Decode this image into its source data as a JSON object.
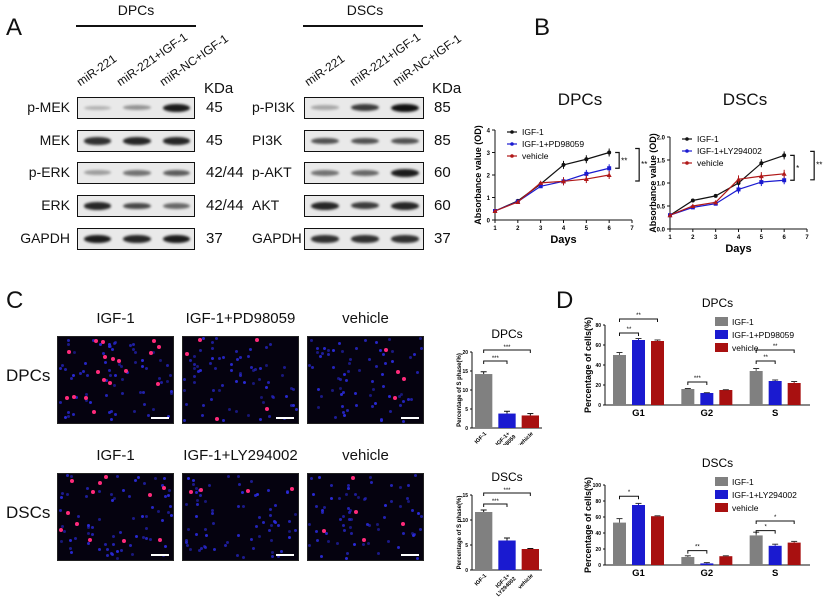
{
  "panels": {
    "A": {
      "letter": "A",
      "groups": [
        {
          "title": "DPCs",
          "lanes": [
            "miR-221",
            "miR-221+IGF-1",
            "miR-NC+IGF-1"
          ],
          "rows": [
            {
              "label": "p-MEK",
              "mw": "45",
              "intensity": [
                0.25,
                0.4,
                0.95
              ]
            },
            {
              "label": "MEK",
              "mw": "45",
              "intensity": [
                0.85,
                0.9,
                0.9
              ]
            },
            {
              "label": "p-ERK",
              "mw": "42/44",
              "intensity": [
                0.35,
                0.55,
                0.65
              ]
            },
            {
              "label": "ERK",
              "mw": "42/44",
              "intensity": [
                0.9,
                0.75,
                0.6
              ]
            },
            {
              "label": "GAPDH",
              "mw": "37",
              "intensity": [
                0.95,
                0.9,
                0.95
              ]
            }
          ]
        },
        {
          "title": "DSCs",
          "lanes": [
            "miR-221",
            "miR-221+IGF-1",
            "miR-NC+IGF-1"
          ],
          "rows": [
            {
              "label": "p-PI3K",
              "mw": "85",
              "intensity": [
                0.3,
                0.8,
                1.0
              ]
            },
            {
              "label": "PI3K",
              "mw": "85",
              "intensity": [
                0.7,
                0.7,
                0.7
              ]
            },
            {
              "label": "p-AKT",
              "mw": "60",
              "intensity": [
                0.55,
                0.6,
                0.95
              ]
            },
            {
              "label": "AKT",
              "mw": "60",
              "intensity": [
                0.9,
                0.8,
                0.9
              ]
            },
            {
              "label": "GAPDH",
              "mw": "37",
              "intensity": [
                0.85,
                0.85,
                0.85
              ]
            }
          ]
        }
      ],
      "kda_label": "KDa"
    },
    "B": {
      "letter": "B"
    },
    "C": {
      "letter": "C",
      "rows": [
        {
          "cell": "DPCs",
          "conditions": [
            "IGF-1",
            "IGF-1+PD98059",
            "vehicle"
          ]
        },
        {
          "cell": "DSCs",
          "conditions": [
            "IGF-1",
            "IGF-1+LY294002",
            "vehicle"
          ]
        }
      ]
    },
    "D": {
      "letter": "D"
    }
  },
  "chart_data": [
    {
      "id": "B-DPCs",
      "type": "line",
      "title": "DPCs",
      "xlabel": "Days",
      "ylabel": "Absorbance value (OD)",
      "x": [
        1,
        2,
        3,
        4,
        5,
        6
      ],
      "xlim": [
        1,
        7
      ],
      "ylim": [
        0,
        4
      ],
      "yticks": [
        0,
        1,
        2,
        3,
        4
      ],
      "series": [
        {
          "name": "IGF-1",
          "color": "#111111",
          "marker": "circle",
          "values": [
            0.4,
            0.85,
            1.6,
            2.45,
            2.7,
            3.0
          ]
        },
        {
          "name": "IGF-1+PD98059",
          "color": "#1a1ad0",
          "marker": "square",
          "values": [
            0.4,
            0.82,
            1.5,
            1.72,
            2.05,
            2.3
          ]
        },
        {
          "name": "vehicle",
          "color": "#b01818",
          "marker": "triangle",
          "values": [
            0.4,
            0.8,
            1.65,
            1.72,
            1.82,
            2.0
          ]
        }
      ],
      "annotations": [
        "**",
        "**"
      ],
      "legend_position": "top-left"
    },
    {
      "id": "B-DSCs",
      "type": "line",
      "title": "DSCs",
      "xlabel": "Days",
      "ylabel": "Absorbance value (OD)",
      "x": [
        1,
        2,
        3,
        4,
        5,
        6
      ],
      "xlim": [
        1,
        7
      ],
      "ylim": [
        0,
        2.0
      ],
      "yticks": [
        0.0,
        0.5,
        1.0,
        1.5,
        2.0
      ],
      "series": [
        {
          "name": "IGF-1",
          "color": "#111111",
          "marker": "circle",
          "values": [
            0.3,
            0.62,
            0.72,
            1.0,
            1.43,
            1.6
          ]
        },
        {
          "name": "IGF-1+LY294002",
          "color": "#1a1ad0",
          "marker": "square",
          "values": [
            0.3,
            0.47,
            0.55,
            0.86,
            1.02,
            1.06
          ]
        },
        {
          "name": "vehicle",
          "color": "#b01818",
          "marker": "triangle",
          "values": [
            0.3,
            0.5,
            0.58,
            1.08,
            1.15,
            1.2
          ]
        }
      ],
      "annotations": [
        "*",
        "**"
      ],
      "legend_position": "top-left"
    },
    {
      "id": "C-DPCs-bar",
      "type": "bar",
      "title": "DPCs",
      "ylabel": "Percentage of S phase(%)",
      "categories": [
        "IGF-1",
        "IGF-1+ PD98059",
        "vehicle"
      ],
      "values": [
        14.2,
        3.8,
        3.3
      ],
      "errors": [
        0.6,
        0.6,
        0.5
      ],
      "colors": [
        "#808080",
        "#1a1ad0",
        "#a81010"
      ],
      "ylim": [
        0,
        20
      ],
      "yticks": [
        0,
        5,
        10,
        15,
        20
      ],
      "annotations": [
        "***",
        "***"
      ]
    },
    {
      "id": "C-DSCs-bar",
      "type": "bar",
      "title": "DSCs",
      "ylabel": "Percentage of S phase(%)",
      "categories": [
        "IGF-1",
        "IGF-1+ LY294002",
        "vehicle"
      ],
      "values": [
        11.6,
        5.9,
        4.2
      ],
      "errors": [
        0.4,
        0.5,
        0.1
      ],
      "colors": [
        "#808080",
        "#1a1ad0",
        "#a81010"
      ],
      "ylim": [
        0,
        15
      ],
      "yticks": [
        0,
        5,
        10,
        15
      ],
      "annotations": [
        "***",
        "***"
      ]
    },
    {
      "id": "D-DPCs",
      "type": "bar",
      "title": "DPCs",
      "ylabel": "Percentage of cells(%)",
      "categories": [
        "G1",
        "G2",
        "S"
      ],
      "series": [
        {
          "name": "IGF-1",
          "color": "#808080",
          "values": [
            50,
            16,
            34
          ],
          "errors": [
            2.5,
            0.5,
            2.5
          ]
        },
        {
          "name": "IGF-1+PD98059",
          "color": "#1a1ad0",
          "values": [
            65,
            12,
            24
          ],
          "errors": [
            1.5,
            0.3,
            1
          ]
        },
        {
          "name": "vehicle",
          "color": "#a81010",
          "values": [
            64,
            15,
            22
          ],
          "errors": [
            1,
            0.3,
            1.5
          ]
        }
      ],
      "ylim": [
        0,
        80
      ],
      "yticks": [
        0,
        20,
        40,
        60,
        80
      ],
      "annotations": [
        "**",
        "**",
        "***",
        "**",
        "**"
      ],
      "legend_position": "top-right"
    },
    {
      "id": "D-DSCs",
      "type": "bar",
      "title": "DSCs",
      "ylabel": "Percentage of cells(%)",
      "categories": [
        "G1",
        "G2",
        "S"
      ],
      "series": [
        {
          "name": "IGF-1",
          "color": "#808080",
          "values": [
            53,
            10,
            37
          ],
          "errors": [
            5,
            1.5,
            4
          ]
        },
        {
          "name": "IGF-1+LY294002",
          "color": "#1a1ad0",
          "values": [
            75,
            2,
            24
          ],
          "errors": [
            2,
            1,
            2
          ]
        },
        {
          "name": "vehicle",
          "color": "#a81010",
          "values": [
            61,
            11,
            28
          ],
          "errors": [
            0.5,
            0.5,
            1.5
          ]
        }
      ],
      "ylim": [
        0,
        100
      ],
      "yticks": [
        0,
        20,
        40,
        60,
        80,
        100
      ],
      "annotations": [
        "*",
        "**",
        "*",
        "*"
      ],
      "legend_position": "top-right"
    }
  ]
}
